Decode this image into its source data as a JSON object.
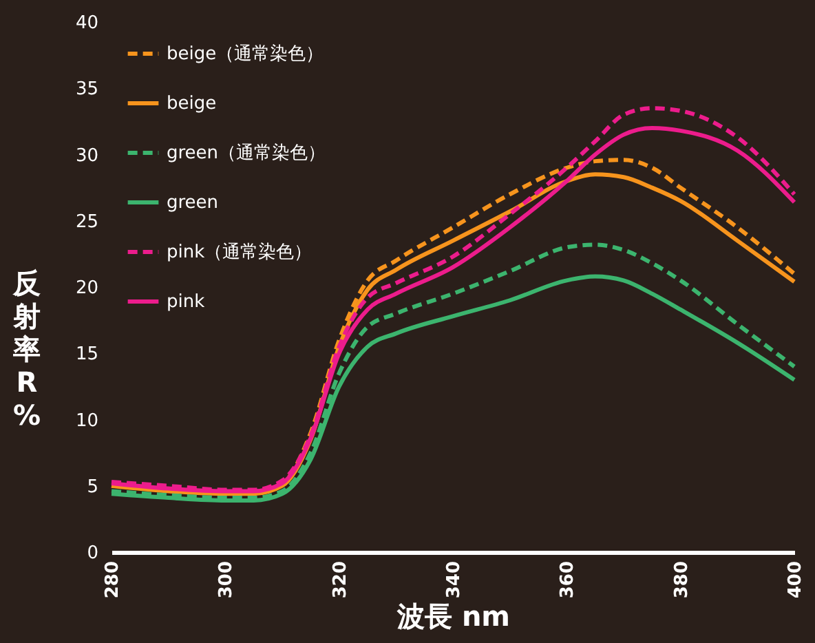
{
  "chart_data": {
    "type": "line",
    "xlabel": "波長 nm",
    "ylabel": "反射率R%",
    "xlim": [
      280,
      400
    ],
    "xticks": [
      280,
      300,
      320,
      340,
      360,
      380,
      400
    ],
    "ylim": [
      0,
      40
    ],
    "yticks": [
      0,
      5,
      10,
      15,
      20,
      25,
      30,
      35,
      40
    ],
    "grid": false,
    "legend": "top left",
    "marker": "none",
    "x": [
      280,
      290,
      300,
      305,
      310,
      315,
      320,
      325,
      330,
      340,
      350,
      360,
      365,
      370,
      375,
      380,
      390,
      400
    ],
    "series": [
      {
        "name": "beige（通常染色）",
        "color": "#f7941d",
        "line_style": "dashed",
        "values": [
          5.0,
          4.8,
          4.6,
          4.6,
          5.2,
          9.0,
          16.0,
          20.5,
          22.0,
          24.5,
          27.0,
          29.0,
          29.5,
          29.6,
          29.0,
          27.5,
          24.5,
          21.0
        ]
      },
      {
        "name": "beige",
        "color": "#f7941d",
        "line_style": "solid",
        "values": [
          5.0,
          4.6,
          4.4,
          4.4,
          5.0,
          8.5,
          15.5,
          19.8,
          21.3,
          23.5,
          25.7,
          28.0,
          28.5,
          28.3,
          27.5,
          26.5,
          23.5,
          20.4
        ]
      },
      {
        "name": "green（通常染色）",
        "color": "#3cb46e",
        "line_style": "dashed",
        "values": [
          4.6,
          4.3,
          4.1,
          4.1,
          4.6,
          7.5,
          13.5,
          17.0,
          18.0,
          19.5,
          21.2,
          23.0,
          23.2,
          22.8,
          21.8,
          20.5,
          17.2,
          14.0
        ]
      },
      {
        "name": "green",
        "color": "#3cb46e",
        "line_style": "solid",
        "values": [
          4.4,
          4.1,
          3.9,
          3.9,
          4.4,
          7.0,
          12.5,
          15.5,
          16.5,
          17.8,
          19.0,
          20.5,
          20.8,
          20.5,
          19.5,
          18.3,
          15.8,
          13.0
        ]
      },
      {
        "name": "pink（通常染色）",
        "color": "#ec1c8c",
        "line_style": "dashed",
        "values": [
          5.3,
          5.0,
          4.7,
          4.7,
          5.4,
          8.8,
          15.5,
          19.2,
          20.3,
          22.3,
          25.5,
          29.0,
          31.0,
          33.0,
          33.5,
          33.3,
          31.3,
          27.0
        ]
      },
      {
        "name": "pink",
        "color": "#ec1c8c",
        "line_style": "solid",
        "values": [
          5.2,
          4.8,
          4.6,
          4.6,
          5.2,
          8.6,
          15.0,
          18.3,
          19.5,
          21.5,
          24.5,
          28.0,
          30.0,
          31.5,
          32.0,
          31.8,
          30.3,
          26.4
        ]
      }
    ]
  }
}
